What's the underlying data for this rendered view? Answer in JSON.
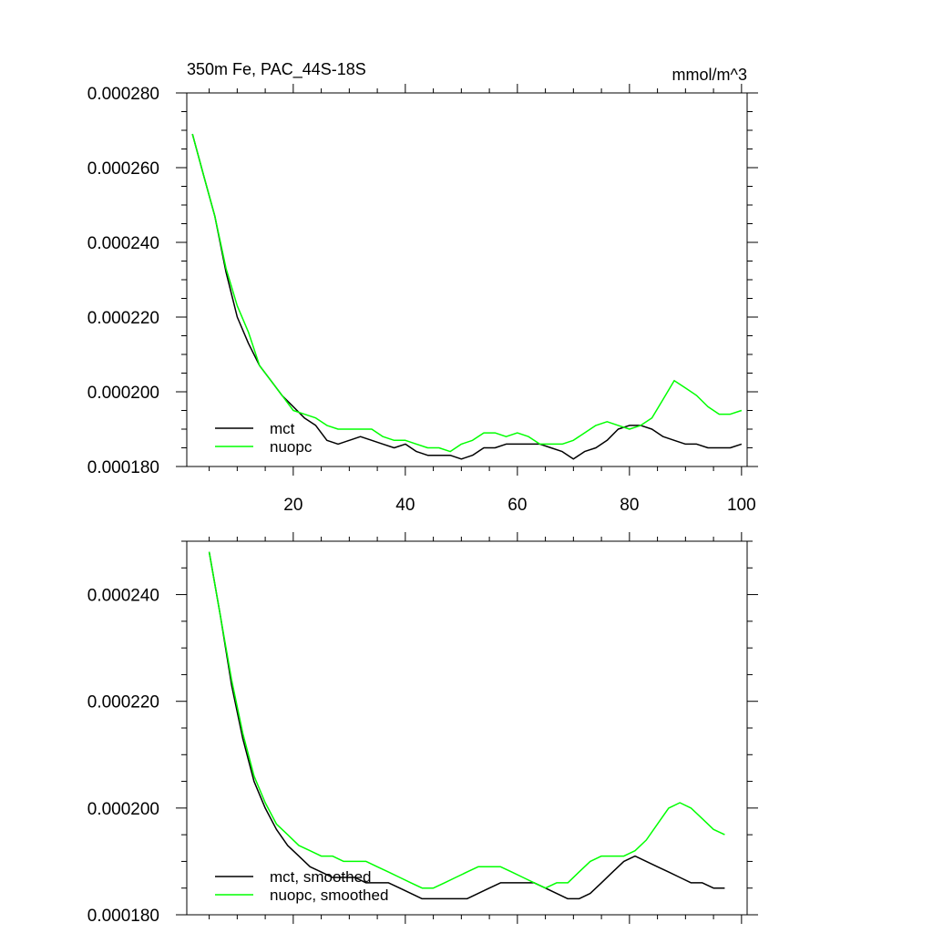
{
  "chart_data": [
    {
      "type": "line",
      "title": "350m Fe, PAC_44S-18S",
      "units": "mmol/m^3",
      "xlim": [
        1,
        101
      ],
      "ylim": [
        0.00018,
        0.00028
      ],
      "x_tick_labels": [
        "20",
        "40",
        "60",
        "80",
        "100"
      ],
      "y_tick_labels": [
        "0.000180",
        "0.000200",
        "0.000220",
        "0.000240",
        "0.000260",
        "0.000280"
      ],
      "legend_position": "bottom-left",
      "series": [
        {
          "name": "mct",
          "color": "#000000",
          "x": [
            2,
            4,
            6,
            8,
            10,
            12,
            14,
            16,
            18,
            20,
            22,
            24,
            26,
            28,
            30,
            32,
            34,
            36,
            38,
            40,
            42,
            44,
            46,
            48,
            50,
            52,
            54,
            56,
            58,
            60,
            62,
            64,
            66,
            68,
            70,
            72,
            74,
            76,
            78,
            80,
            82,
            84,
            86,
            88,
            90,
            92,
            94,
            96,
            98,
            100
          ],
          "values": [
            0.000269,
            0.000258,
            0.000247,
            0.000232,
            0.00022,
            0.000213,
            0.000207,
            0.000203,
            0.000199,
            0.000196,
            0.000193,
            0.000191,
            0.000187,
            0.000186,
            0.000187,
            0.000188,
            0.000187,
            0.000186,
            0.000185,
            0.000186,
            0.000184,
            0.000183,
            0.000183,
            0.000183,
            0.000182,
            0.000183,
            0.000185,
            0.000185,
            0.000186,
            0.000186,
            0.000186,
            0.000186,
            0.000185,
            0.000184,
            0.000182,
            0.000184,
            0.000185,
            0.000187,
            0.00019,
            0.000191,
            0.000191,
            0.00019,
            0.000188,
            0.000187,
            0.000186,
            0.000186,
            0.000185,
            0.000185,
            0.000185,
            0.000186
          ]
        },
        {
          "name": "nuopc",
          "color": "#00ff00",
          "x": [
            2,
            4,
            6,
            8,
            10,
            12,
            14,
            16,
            18,
            20,
            22,
            24,
            26,
            28,
            30,
            32,
            34,
            36,
            38,
            40,
            42,
            44,
            46,
            48,
            50,
            52,
            54,
            56,
            58,
            60,
            62,
            64,
            66,
            68,
            70,
            72,
            74,
            76,
            78,
            80,
            82,
            84,
            86,
            88,
            90,
            92,
            94,
            96,
            98,
            100
          ],
          "values": [
            0.000269,
            0.000258,
            0.000247,
            0.000233,
            0.000223,
            0.000216,
            0.000207,
            0.000203,
            0.000199,
            0.000195,
            0.000194,
            0.000193,
            0.000191,
            0.00019,
            0.00019,
            0.00019,
            0.00019,
            0.000188,
            0.000187,
            0.000187,
            0.000186,
            0.000185,
            0.000185,
            0.000184,
            0.000186,
            0.000187,
            0.000189,
            0.000189,
            0.000188,
            0.000189,
            0.000188,
            0.000186,
            0.000186,
            0.000186,
            0.000187,
            0.000189,
            0.000191,
            0.000192,
            0.000191,
            0.00019,
            0.000191,
            0.000193,
            0.000198,
            0.000203,
            0.000201,
            0.000199,
            0.000196,
            0.000194,
            0.000194,
            0.000195
          ]
        }
      ]
    },
    {
      "type": "line",
      "title": "",
      "units": "",
      "xlim": [
        1,
        101
      ],
      "ylim": [
        0.00018,
        0.00025
      ],
      "x_tick_labels": [],
      "y_tick_labels": [
        "0.000180",
        "0.000200",
        "0.000220",
        "0.000240"
      ],
      "legend_position": "bottom-left",
      "series": [
        {
          "name": "mct, smoothed",
          "color": "#000000",
          "x": [
            5,
            7,
            9,
            11,
            13,
            15,
            17,
            19,
            21,
            23,
            25,
            27,
            29,
            31,
            33,
            35,
            37,
            39,
            41,
            43,
            45,
            47,
            49,
            51,
            53,
            55,
            57,
            59,
            61,
            63,
            65,
            67,
            69,
            71,
            73,
            75,
            77,
            79,
            81,
            83,
            85,
            87,
            89,
            91,
            93,
            95,
            97
          ],
          "values": [
            0.000248,
            0.000236,
            0.000223,
            0.000213,
            0.000205,
            0.0002,
            0.000196,
            0.000193,
            0.000191,
            0.000189,
            0.000188,
            0.000187,
            0.000187,
            0.000187,
            0.000186,
            0.000186,
            0.000186,
            0.000185,
            0.000184,
            0.000183,
            0.000183,
            0.000183,
            0.000183,
            0.000183,
            0.000184,
            0.000185,
            0.000186,
            0.000186,
            0.000186,
            0.000186,
            0.000185,
            0.000184,
            0.000183,
            0.000183,
            0.000184,
            0.000186,
            0.000188,
            0.00019,
            0.000191,
            0.00019,
            0.000189,
            0.000188,
            0.000187,
            0.000186,
            0.000186,
            0.000185,
            0.000185
          ]
        },
        {
          "name": "nuopc, smoothed",
          "color": "#00ff00",
          "x": [
            5,
            7,
            9,
            11,
            13,
            15,
            17,
            19,
            21,
            23,
            25,
            27,
            29,
            31,
            33,
            35,
            37,
            39,
            41,
            43,
            45,
            47,
            49,
            51,
            53,
            55,
            57,
            59,
            61,
            63,
            65,
            67,
            69,
            71,
            73,
            75,
            77,
            79,
            81,
            83,
            85,
            87,
            89,
            91,
            93,
            95,
            97
          ],
          "values": [
            0.000248,
            0.000236,
            0.000224,
            0.000214,
            0.000206,
            0.000201,
            0.000197,
            0.000195,
            0.000193,
            0.000192,
            0.000191,
            0.000191,
            0.00019,
            0.00019,
            0.00019,
            0.000189,
            0.000188,
            0.000187,
            0.000186,
            0.000185,
            0.000185,
            0.000186,
            0.000187,
            0.000188,
            0.000189,
            0.000189,
            0.000189,
            0.000188,
            0.000187,
            0.000186,
            0.000185,
            0.000186,
            0.000186,
            0.000188,
            0.00019,
            0.000191,
            0.000191,
            0.000191,
            0.000192,
            0.000194,
            0.000197,
            0.0002,
            0.000201,
            0.0002,
            0.000198,
            0.000196,
            0.000195
          ]
        }
      ]
    }
  ]
}
